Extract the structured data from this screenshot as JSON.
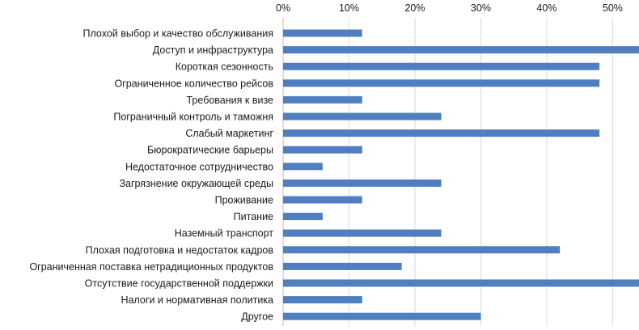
{
  "chart_data": {
    "type": "bar",
    "orientation": "horizontal",
    "categories": [
      "Плохой выбор и качество обслуживания",
      "Доступ и инфраструктура",
      "Короткая сезонность",
      "Ограниченное количество рейсов",
      "Требования к визе",
      "Пограничный контроль и таможня",
      "Слабый маркетинг",
      "Бюрократические барьеры",
      "Недостаточное сотрудничество",
      "Загрязнение окружающей среды",
      "Проживание",
      "Питание",
      "Наземный транспорт",
      "Плохая подготовка и недостаток кадров",
      "Ограниченная поставка нетрадиционных продуктов",
      "Отсутствие государственной поддержки",
      "Налоги и нормативная политика",
      "Другое"
    ],
    "values": [
      12,
      54,
      48,
      48,
      12,
      24,
      48,
      12,
      6,
      24,
      12,
      6,
      24,
      42,
      18,
      54,
      12,
      30
    ],
    "xlim": [
      0,
      54
    ],
    "xticks": [
      0,
      10,
      20,
      30,
      40,
      50
    ],
    "xtick_labels": [
      "0%",
      "10%",
      "20%",
      "30%",
      "40%",
      "50%"
    ],
    "xaxis_position": "top",
    "grid": true,
    "bar_color": "#4f7fbf",
    "title": "",
    "xlabel": "",
    "ylabel": ""
  }
}
